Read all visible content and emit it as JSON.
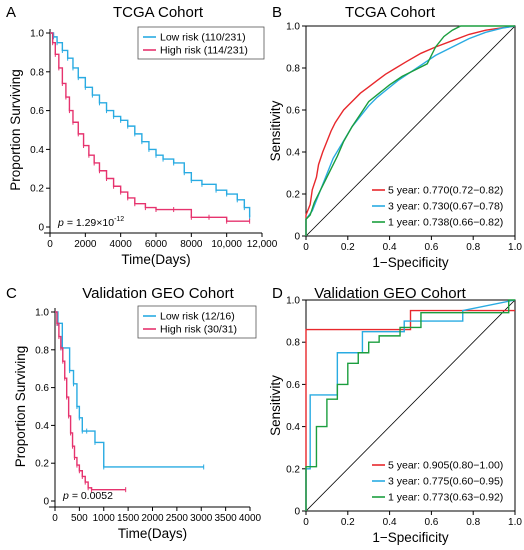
{
  "colors": {
    "low": "#29ABE2",
    "high": "#E6336E",
    "y5": "#E8282C",
    "y3": "#29ABE2",
    "y1": "#1B9E3E"
  },
  "chart_data": [
    {
      "id": "A",
      "type": "line",
      "subtype": "kaplan-meier",
      "panel": "A",
      "title": "TCGA Cohort",
      "xlabel": "Time(Days)",
      "ylabel": "Proportion Surviving",
      "xlim": [
        0,
        12000
      ],
      "ylim": [
        0,
        1.0
      ],
      "xticks": [
        0,
        2000,
        4000,
        6000,
        8000,
        10000,
        12000
      ],
      "xtick_labels": [
        "0",
        "2000",
        "4000",
        "6000",
        "8000",
        "10,000",
        "12,000"
      ],
      "yticks": [
        0,
        0.2,
        0.4,
        0.6,
        0.8,
        1.0
      ],
      "ytick_labels": [
        "0",
        "0.2",
        "0.4",
        "0.6",
        "0.8",
        "1.0"
      ],
      "legend_position": "top-right",
      "annotation_prefix": "p = ",
      "annotation_value": "1.29×10",
      "annotation_exp": "-12",
      "series": [
        {
          "name": "Low risk (110/231)",
          "color_key": "low",
          "x": [
            0,
            200,
            400,
            700,
            1000,
            1300,
            1600,
            2000,
            2400,
            2800,
            3200,
            3600,
            4000,
            4400,
            4800,
            5200,
            5600,
            6000,
            6400,
            7000,
            7600,
            8000,
            8600,
            9400,
            10000,
            10600,
            11000,
            11300
          ],
          "y": [
            1.0,
            0.98,
            0.95,
            0.91,
            0.87,
            0.82,
            0.77,
            0.72,
            0.68,
            0.64,
            0.6,
            0.57,
            0.55,
            0.52,
            0.48,
            0.44,
            0.4,
            0.37,
            0.35,
            0.33,
            0.28,
            0.24,
            0.22,
            0.19,
            0.17,
            0.14,
            0.1,
            0.05
          ]
        },
        {
          "name": "High risk (114/231)",
          "color_key": "high",
          "x": [
            0,
            150,
            300,
            500,
            700,
            900,
            1100,
            1300,
            1600,
            1900,
            2200,
            2500,
            2800,
            3200,
            3600,
            4000,
            4400,
            4800,
            5400,
            6000,
            7000,
            8000,
            9000,
            10000,
            11300
          ],
          "y": [
            1.0,
            0.95,
            0.89,
            0.82,
            0.74,
            0.67,
            0.6,
            0.54,
            0.48,
            0.42,
            0.37,
            0.33,
            0.29,
            0.25,
            0.21,
            0.18,
            0.15,
            0.12,
            0.1,
            0.09,
            0.09,
            0.05,
            0.05,
            0.03,
            0.03
          ]
        }
      ]
    },
    {
      "id": "B",
      "type": "line",
      "subtype": "roc",
      "panel": "B",
      "title": "TCGA Cohort",
      "xlabel": "1−Specificity",
      "ylabel": "Sensitivity",
      "xlim": [
        0,
        1.0
      ],
      "ylim": [
        0,
        1.0
      ],
      "xticks": [
        0,
        0.2,
        0.4,
        0.6,
        0.8,
        1.0
      ],
      "xtick_labels": [
        "0",
        "0.2",
        "0.4",
        "0.6",
        "0.8",
        "1.0"
      ],
      "yticks": [
        0,
        0.2,
        0.4,
        0.6,
        0.8,
        1.0
      ],
      "ytick_labels": [
        "0",
        "0.2",
        "0.4",
        "0.6",
        "0.8",
        "1.0"
      ],
      "legend_position": "bottom-right",
      "series": [
        {
          "name": "5 year: 0.770(0.72−0.82)",
          "color_key": "y5",
          "x": [
            0,
            0,
            0.02,
            0.03,
            0.05,
            0.06,
            0.08,
            0.1,
            0.12,
            0.14,
            0.16,
            0.18,
            0.2,
            0.23,
            0.26,
            0.3,
            0.34,
            0.38,
            0.43,
            0.48,
            0.55,
            0.62,
            0.7,
            0.78,
            0.86,
            0.93,
            1.0
          ],
          "y": [
            0,
            0.1,
            0.15,
            0.22,
            0.28,
            0.34,
            0.4,
            0.45,
            0.5,
            0.54,
            0.57,
            0.6,
            0.62,
            0.65,
            0.68,
            0.71,
            0.74,
            0.77,
            0.8,
            0.83,
            0.87,
            0.9,
            0.93,
            0.96,
            0.98,
            0.99,
            1.0
          ]
        },
        {
          "name": "3 year: 0.730(0.67−0.78)",
          "color_key": "y3",
          "x": [
            0,
            0,
            0.03,
            0.05,
            0.07,
            0.09,
            0.11,
            0.13,
            0.16,
            0.19,
            0.22,
            0.26,
            0.3,
            0.34,
            0.39,
            0.44,
            0.5,
            0.56,
            0.62,
            0.7,
            0.78,
            0.86,
            0.94,
            1.0
          ],
          "y": [
            0,
            0.08,
            0.12,
            0.17,
            0.22,
            0.27,
            0.32,
            0.37,
            0.42,
            0.47,
            0.52,
            0.57,
            0.62,
            0.66,
            0.7,
            0.74,
            0.78,
            0.82,
            0.86,
            0.9,
            0.94,
            0.97,
            0.99,
            1.0
          ]
        },
        {
          "name": "1 year: 0.738(0.66−0.82)",
          "color_key": "y1",
          "x": [
            0,
            0,
            0.02,
            0.04,
            0.06,
            0.09,
            0.12,
            0.15,
            0.18,
            0.22,
            0.26,
            0.3,
            0.35,
            0.4,
            0.46,
            0.52,
            0.58,
            0.62,
            0.66,
            0.7,
            0.74,
            0.8,
            0.87,
            0.94,
            1.0
          ],
          "y": [
            0,
            0.08,
            0.1,
            0.16,
            0.2,
            0.26,
            0.32,
            0.38,
            0.45,
            0.52,
            0.58,
            0.64,
            0.68,
            0.72,
            0.76,
            0.79,
            0.82,
            0.9,
            0.95,
            0.98,
            1.0,
            1.0,
            1.0,
            1.0,
            1.0
          ]
        }
      ]
    },
    {
      "id": "C",
      "type": "line",
      "subtype": "kaplan-meier",
      "panel": "C",
      "title": "Validation GEO Cohort",
      "xlabel": "Time(Days)",
      "ylabel": "Proportion Surviving",
      "xlim": [
        0,
        4000
      ],
      "ylim": [
        0,
        1.0
      ],
      "xticks": [
        0,
        500,
        1000,
        1500,
        2000,
        2500,
        3000,
        3500,
        4000
      ],
      "xtick_labels": [
        "0",
        "500",
        "1000",
        "1500",
        "2000",
        "2500",
        "3000",
        "3500",
        "4000"
      ],
      "yticks": [
        0,
        0.2,
        0.4,
        0.6,
        0.8,
        1.0
      ],
      "ytick_labels": [
        "0",
        "0.2",
        "0.4",
        "0.6",
        "0.8",
        "1.0"
      ],
      "legend_position": "top-right",
      "annotation_prefix": "p = ",
      "annotation_value": "0.0052",
      "annotation_exp": "",
      "series": [
        {
          "name": "Low risk  (12/16)",
          "color_key": "low",
          "x": [
            0,
            60,
            150,
            300,
            380,
            450,
            500,
            560,
            650,
            820,
            1000,
            3050
          ],
          "y": [
            1.0,
            0.94,
            0.81,
            0.69,
            0.62,
            0.5,
            0.44,
            0.37,
            0.37,
            0.31,
            0.18,
            0.18
          ]
        },
        {
          "name": "High risk  (30/31)",
          "color_key": "high",
          "x": [
            0,
            40,
            80,
            120,
            160,
            200,
            240,
            280,
            320,
            360,
            400,
            450,
            500,
            560,
            620,
            680,
            750,
            1450
          ],
          "y": [
            1.0,
            0.94,
            0.87,
            0.81,
            0.74,
            0.65,
            0.55,
            0.45,
            0.36,
            0.29,
            0.23,
            0.19,
            0.16,
            0.13,
            0.1,
            0.07,
            0.06,
            0.06
          ]
        }
      ]
    },
    {
      "id": "D",
      "type": "line",
      "subtype": "roc",
      "panel": "D",
      "title": "Validation GEO Cohort",
      "xlabel": "1−Specificity",
      "ylabel": "Sensitivity",
      "xlim": [
        0,
        1.0
      ],
      "ylim": [
        0,
        1.0
      ],
      "xticks": [
        0,
        0.2,
        0.4,
        0.6,
        0.8,
        1.0
      ],
      "xtick_labels": [
        "0",
        "0.2",
        "0.4",
        "0.6",
        "0.8",
        "1.0"
      ],
      "yticks": [
        0,
        0.2,
        0.4,
        0.6,
        0.8,
        1.0
      ],
      "ytick_labels": [
        "0",
        "0.2",
        "0.4",
        "0.6",
        "0.8",
        "1.0"
      ],
      "legend_position": "bottom-right",
      "series": [
        {
          "name": "5 year: 0.905(0.80−1.00)",
          "color_key": "y5",
          "x": [
            0,
            0,
            0.5,
            0.5,
            1.0
          ],
          "y": [
            0,
            0.86,
            0.86,
            0.95,
            0.95
          ]
        },
        {
          "name": "3 year: 0.775(0.60−0.95)",
          "color_key": "y3",
          "x": [
            0,
            0,
            0.02,
            0.02,
            0.15,
            0.15,
            0.27,
            0.27,
            0.47,
            0.47,
            0.75,
            0.75,
            1.0
          ],
          "y": [
            0,
            0.2,
            0.2,
            0.55,
            0.55,
            0.75,
            0.75,
            0.85,
            0.85,
            0.9,
            0.9,
            0.95,
            1.0
          ]
        },
        {
          "name": "1 year: 0.773(0.63−0.92)",
          "color_key": "y1",
          "x": [
            0,
            0,
            0.05,
            0.05,
            0.1,
            0.1,
            0.15,
            0.15,
            0.2,
            0.2,
            0.25,
            0.25,
            0.3,
            0.3,
            0.35,
            0.35,
            0.45,
            0.45,
            0.55,
            0.55,
            0.97,
            0.97,
            1.0
          ],
          "y": [
            0,
            0.21,
            0.21,
            0.4,
            0.4,
            0.53,
            0.53,
            0.6,
            0.6,
            0.7,
            0.7,
            0.75,
            0.75,
            0.8,
            0.8,
            0.83,
            0.83,
            0.87,
            0.87,
            0.94,
            0.94,
            1.0,
            1.0
          ]
        }
      ]
    }
  ]
}
